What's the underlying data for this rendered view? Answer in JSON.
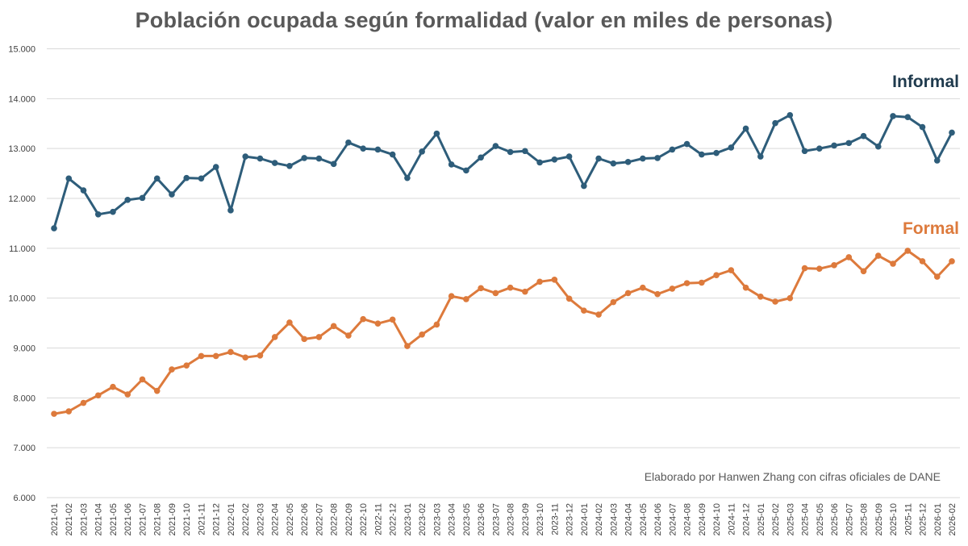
{
  "chart_data": {
    "type": "line",
    "title": "Población ocupada según formalidad (valor en miles de personas)",
    "xlabel": "",
    "ylabel": "",
    "ylim": [
      6000,
      15000
    ],
    "yticks": [
      6000,
      7000,
      8000,
      9000,
      10000,
      11000,
      12000,
      13000,
      14000,
      15000
    ],
    "ytick_labels": [
      "6.000",
      "7.000",
      "8.000",
      "9.000",
      "10.000",
      "11.000",
      "12.000",
      "13.000",
      "14.000",
      "15.000"
    ],
    "grid": true,
    "categories": [
      "2021-01",
      "2021-02",
      "2021-03",
      "2021-04",
      "2021-05",
      "2021-06",
      "2021-07",
      "2021-08",
      "2021-09",
      "2021-10",
      "2021-11",
      "2021-12",
      "2022-01",
      "2022-02",
      "2022-03",
      "2022-04",
      "2022-05",
      "2022-06",
      "2022-07",
      "2022-08",
      "2022-09",
      "2022-10",
      "2022-11",
      "2022-12",
      "2023-01",
      "2023-02",
      "2023-03",
      "2023-04",
      "2023-05",
      "2023-06",
      "2023-07",
      "2023-08",
      "2023-09",
      "2023-10",
      "2023-11",
      "2023-12",
      "2024-01",
      "2024-02",
      "2024-03",
      "2024-04",
      "2024-05",
      "2024-06",
      "2024-07",
      "2024-08",
      "2024-09",
      "2024-10",
      "2024-11",
      "2024-12",
      "2025-01",
      "2025-02",
      "2025-03",
      "2025-04",
      "2025-05",
      "2025-06",
      "2025-07",
      "2025-08",
      "2025-09",
      "2025-10",
      "2025-11",
      "2025-12",
      "2026-01",
      "2026-02"
    ],
    "series": [
      {
        "name": "Informal",
        "color": "#2e5d7a",
        "label_color": "#1f3a4d",
        "values": [
          11400,
          12400,
          12160,
          11680,
          11730,
          11970,
          12010,
          12400,
          12080,
          12410,
          12400,
          12630,
          11760,
          12840,
          12800,
          12710,
          12650,
          12810,
          12800,
          12690,
          13120,
          13000,
          12980,
          12880,
          12410,
          12940,
          13300,
          12680,
          12560,
          12820,
          13050,
          12930,
          12950,
          12720,
          12780,
          12840,
          12250,
          12800,
          12700,
          12730,
          12800,
          12810,
          12980,
          13090,
          12880,
          12910,
          13020,
          13400,
          12840,
          13510,
          13670,
          12950,
          13000,
          13060,
          13110,
          13250,
          13040,
          13650,
          13630,
          13430,
          12760,
          13320
        ]
      },
      {
        "name": "Formal",
        "color": "#dd7a3c",
        "label_color": "#dd7a3c",
        "values": [
          7680,
          7730,
          7900,
          8050,
          8220,
          8070,
          8370,
          8140,
          8570,
          8650,
          8840,
          8840,
          8920,
          8810,
          8850,
          9220,
          9510,
          9180,
          9220,
          9440,
          9250,
          9580,
          9490,
          9570,
          9040,
          9270,
          9470,
          10040,
          9980,
          10200,
          10100,
          10210,
          10130,
          10330,
          10370,
          9990,
          9750,
          9670,
          9920,
          10100,
          10210,
          10080,
          10190,
          10300,
          10310,
          10460,
          10560,
          10210,
          10030,
          9930,
          10000,
          10600,
          10590,
          10660,
          10820,
          10540,
          10850,
          10690,
          10950,
          10740,
          10430,
          10740
        ]
      }
    ],
    "annotation": "Elaborado por Hanwen Zhang con cifras oficiales de DANE"
  }
}
